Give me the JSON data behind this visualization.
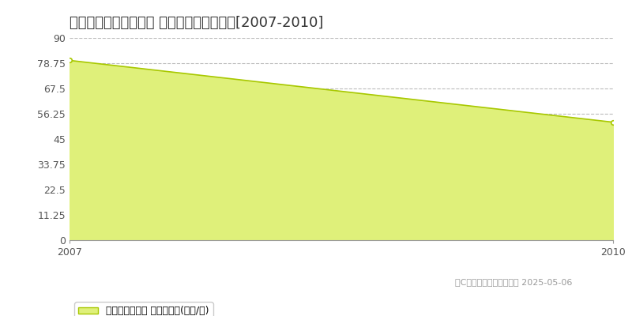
{
  "title": "加古川市平岡町一色西 マンション価格推移[2007-2010]",
  "x_values": [
    2007,
    2010
  ],
  "y_values": [
    80.0,
    52.5
  ],
  "xmin": 2007,
  "xmax": 2010,
  "ymin": 0,
  "ymax": 90,
  "yticks": [
    0,
    11.25,
    22.5,
    33.75,
    45,
    56.25,
    67.5,
    78.75,
    90
  ],
  "ytick_labels": [
    "0",
    "11.25",
    "22.5",
    "33.75",
    "45",
    "56.25",
    "67.5",
    "78.75",
    "90"
  ],
  "line_color": "#a8c800",
  "fill_color": "#dff07a",
  "marker_color": "#ffffff",
  "marker_edge_color": "#a8c800",
  "grid_color": "#bbbbbb",
  "bg_color": "#ffffff",
  "legend_label": "マンション価格 平均坪単価(万円/坪)",
  "copyright_text": "（C）土地価格ドットコム 2025-05-06",
  "title_fontsize": 13,
  "axis_fontsize": 9,
  "legend_fontsize": 9,
  "copyright_fontsize": 8
}
